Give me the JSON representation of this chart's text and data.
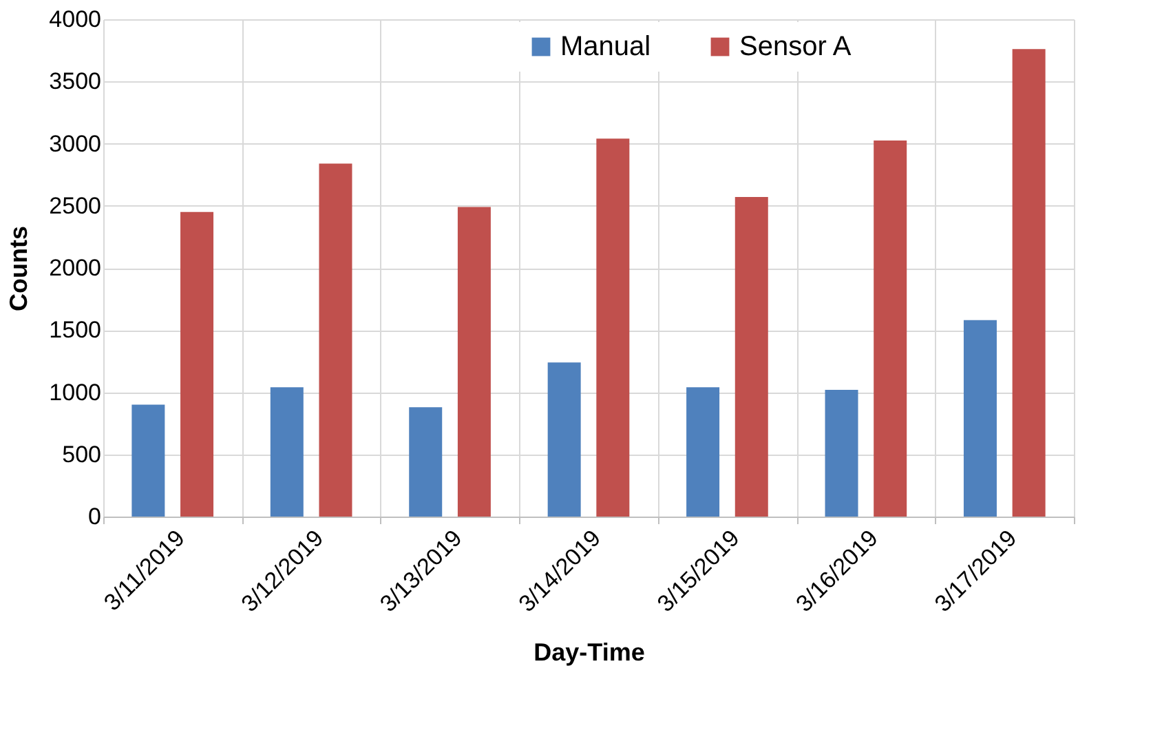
{
  "chart_data": {
    "type": "bar",
    "xlabel": "Day-Time",
    "ylabel": "Counts",
    "categories": [
      "3/11/2019",
      "3/12/2019",
      "3/13/2019",
      "3/14/2019",
      "3/15/2019",
      "3/16/2019",
      "3/17/2019"
    ],
    "series": [
      {
        "name": "Manual",
        "color": "#4f81bd",
        "values": [
          900,
          1040,
          880,
          1240,
          1040,
          1020,
          1580
        ]
      },
      {
        "name": "Sensor A",
        "color": "#c0504d",
        "values": [
          2450,
          2840,
          2490,
          3040,
          2570,
          3025,
          3760
        ]
      }
    ],
    "ylim": [
      0,
      4000
    ],
    "yticks": [
      0,
      500,
      1000,
      1500,
      2000,
      2500,
      3000,
      3500,
      4000
    ],
    "grid": true,
    "legend": "top right"
  }
}
